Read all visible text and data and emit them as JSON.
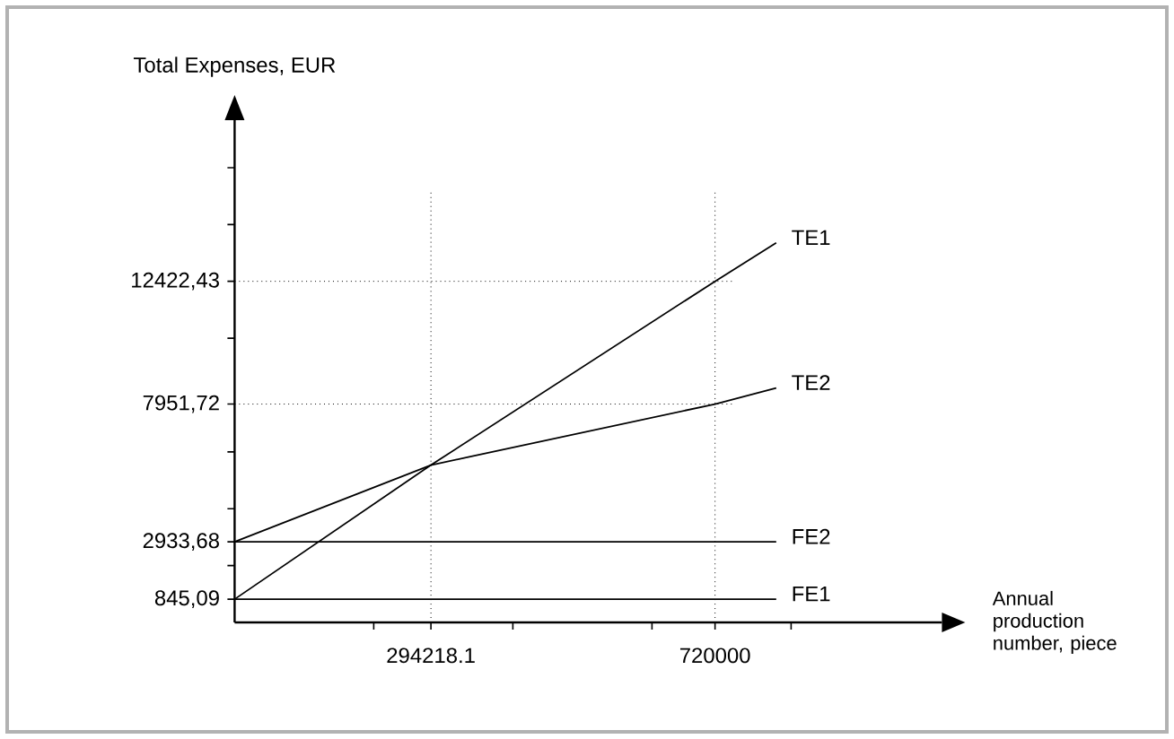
{
  "chart_data": {
    "type": "line",
    "xlabel": "Annual production number, piece",
    "ylabel": "Total Expenses, EUR",
    "xlim": [
      0,
      1060000
    ],
    "ylim": [
      0,
      18290
    ],
    "xticks": [
      {
        "value": 208500,
        "label": null
      },
      294218.1,
      {
        "value": 417000,
        "label": null
      },
      {
        "value": 625500,
        "label": null
      },
      720000,
      {
        "value": 834000,
        "label": null
      }
    ],
    "yticks": [
      {
        "value": 845.09,
        "label": "845,09"
      },
      {
        "value": 2070,
        "label": null
      },
      {
        "value": 2933.68,
        "label": "2933,68"
      },
      {
        "value": 4140,
        "label": null
      },
      {
        "value": 6210,
        "label": null
      },
      {
        "value": 7951.72,
        "label": "7951,72"
      },
      {
        "value": 10350,
        "label": null
      },
      {
        "value": 12422.43,
        "label": "12422,43"
      },
      {
        "value": 14490,
        "label": null
      },
      {
        "value": 16560,
        "label": null
      }
    ],
    "series": [
      {
        "name": "TE1",
        "color": "#000000",
        "x": [
          0,
          294218.1,
          720000,
          811700
        ],
        "values": [
          845.09,
          5730,
          12422.43,
          13820
        ]
      },
      {
        "name": "TE2",
        "color": "#000000",
        "x": [
          0,
          294218.1,
          720000,
          811700
        ],
        "values": [
          2933.68,
          5730,
          7951.72,
          8540
        ]
      },
      {
        "name": "FE2",
        "color": "#000000",
        "x": [
          0,
          811700
        ],
        "values": [
          2933.68,
          2933.68
        ]
      },
      {
        "name": "FE1",
        "color": "#000000",
        "x": [
          0,
          811700
        ],
        "values": [
          845.09,
          845.09
        ]
      }
    ],
    "ref_lines": [
      {
        "axis": "x",
        "value": 294218.1,
        "line_style": "dotted"
      },
      {
        "axis": "x",
        "value": 720000,
        "line_style": "dotted"
      },
      {
        "axis": "y",
        "value": 12422.43,
        "line_style": "dotted"
      },
      {
        "axis": "y",
        "value": 7951.72,
        "line_style": "dotted"
      }
    ],
    "grid": false,
    "legend": false,
    "marker": "none",
    "line_style": "solid"
  }
}
